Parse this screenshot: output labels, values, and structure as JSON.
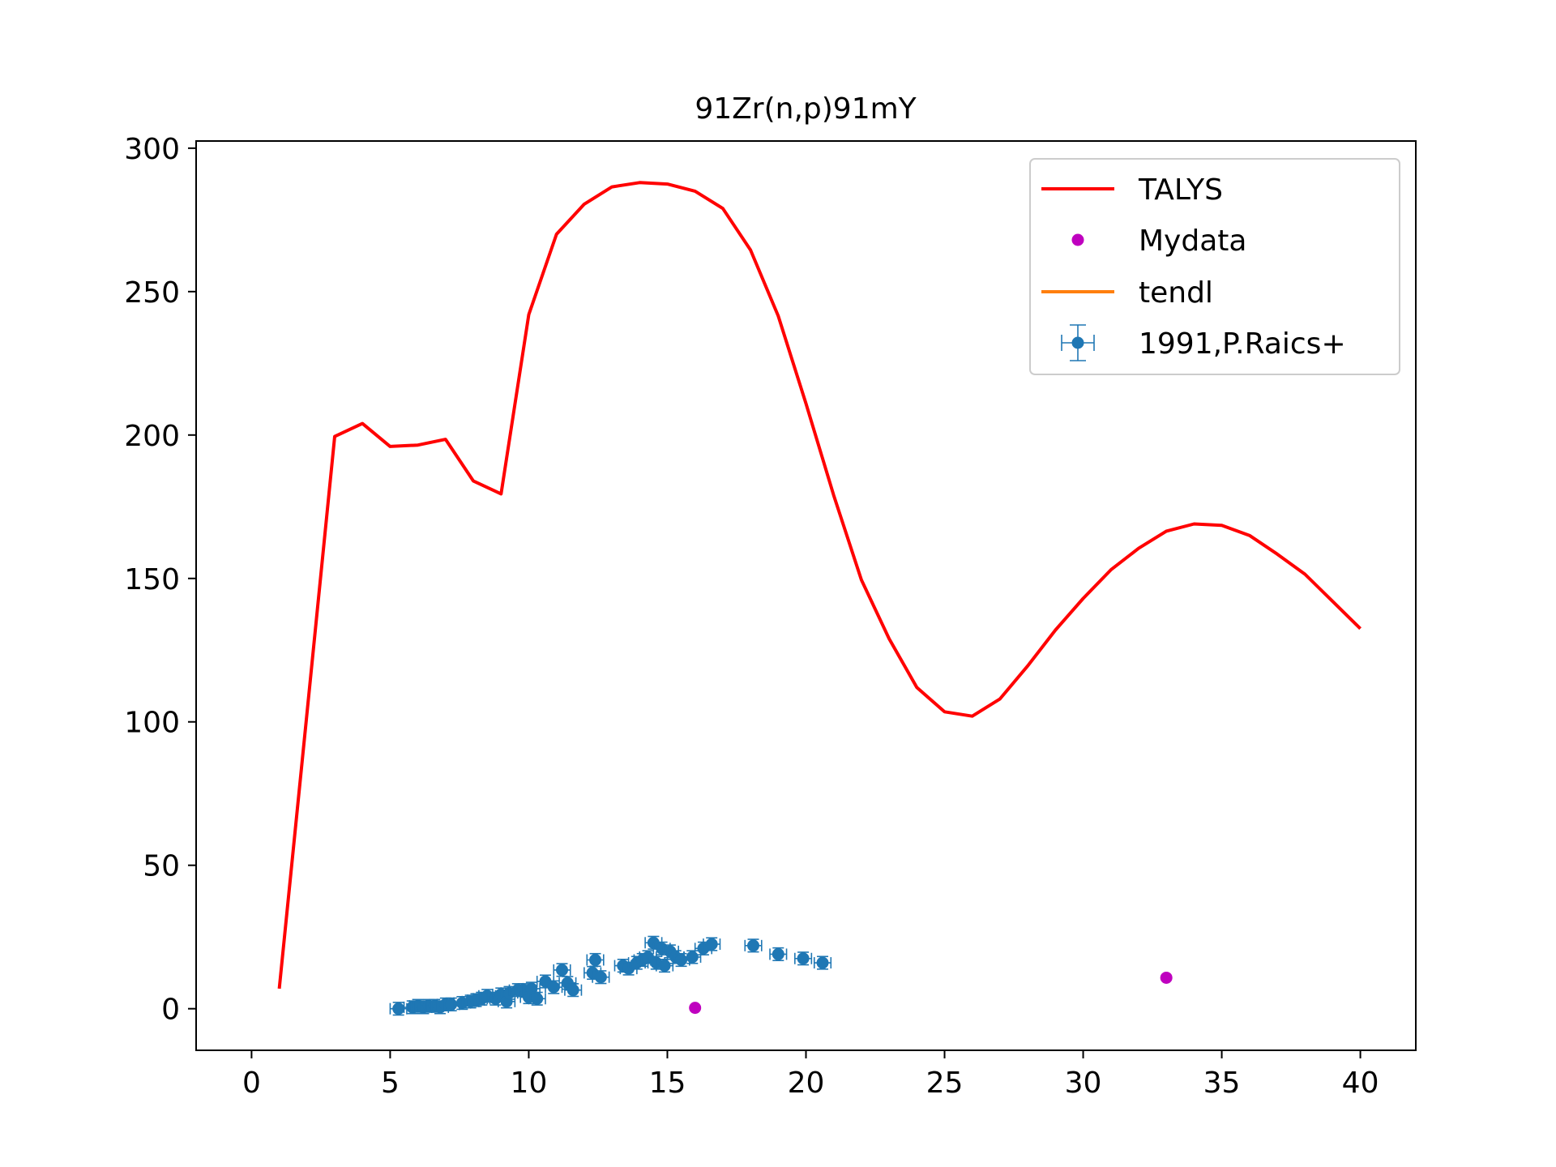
{
  "chart_data": {
    "type": "line",
    "title": "91Zr(n,p)91mY",
    "xlabel": "",
    "ylabel": "",
    "xlim": [
      -2,
      42
    ],
    "ylim": [
      -14.5,
      302.5
    ],
    "xticks": [
      0,
      5,
      10,
      15,
      20,
      25,
      30,
      35,
      40
    ],
    "yticks": [
      0,
      50,
      100,
      150,
      200,
      250,
      300
    ],
    "grid": false,
    "legend_position": "top-right",
    "colors": {
      "talys": "#ff0000",
      "mydata": "#bf00bf",
      "tendl": "#ff7f0e",
      "exfor": "#1f77b4"
    },
    "series": [
      {
        "name": "TALYS",
        "kind": "line",
        "x": [
          1,
          2,
          3,
          4,
          5,
          6,
          7,
          8,
          9,
          10,
          11,
          12,
          13,
          14,
          15,
          16,
          17,
          18,
          19,
          20,
          21,
          22,
          23,
          24,
          25,
          26,
          27,
          28,
          29,
          30,
          31,
          32,
          33,
          34,
          35,
          36,
          37,
          38,
          39,
          40
        ],
        "y": [
          7,
          103,
          199.5,
          204,
          196,
          196.5,
          198.5,
          184,
          179.5,
          242,
          270,
          280.5,
          286.5,
          288,
          287.5,
          285,
          279,
          264.5,
          241.5,
          211,
          179,
          149.5,
          129,
          112,
          103.5,
          102,
          108,
          119.5,
          132,
          143,
          153,
          160.5,
          166.5,
          169,
          168.5,
          165,
          158.5,
          151.5,
          142,
          132.5
        ]
      },
      {
        "name": "Mydata",
        "kind": "scatter",
        "x": [
          16,
          33
        ],
        "y": [
          0.3,
          10.8
        ]
      },
      {
        "name": "tendl",
        "kind": "line",
        "x": [],
        "y": []
      },
      {
        "name": "1991,P.Raics+",
        "kind": "errorbar",
        "x": [
          5.3,
          5.8,
          6.0,
          6.2,
          6.4,
          6.6,
          6.8,
          7.0,
          7.2,
          7.6,
          7.9,
          8.1,
          8.3,
          8.5,
          8.8,
          9.0,
          9.2,
          9.3,
          9.6,
          9.8,
          10.0,
          10.1,
          10.3,
          10.6,
          10.9,
          11.2,
          11.4,
          11.6,
          12.3,
          12.4,
          12.6,
          13.4,
          13.6,
          13.9,
          14.1,
          14.3,
          14.5,
          14.6,
          14.8,
          14.9,
          15.1,
          15.3,
          15.5,
          15.9,
          16.3,
          16.6,
          18.1,
          19.0,
          19.9,
          20.6
        ],
        "y": [
          0,
          0.5,
          1,
          0.5,
          1,
          1,
          0.5,
          1.5,
          1.5,
          2,
          2.5,
          3,
          3.5,
          4.5,
          3.5,
          5,
          2.5,
          5.5,
          6.5,
          6.5,
          4,
          7,
          3.5,
          9.5,
          7.5,
          13.5,
          9,
          6.5,
          12.5,
          17,
          11,
          15,
          14,
          16,
          17,
          18,
          23,
          16,
          21,
          15,
          20,
          18,
          17,
          18,
          21,
          22.5,
          22,
          19,
          17.5,
          16
        ],
        "xerr": 0.3,
        "yerr": 2.2
      }
    ]
  }
}
